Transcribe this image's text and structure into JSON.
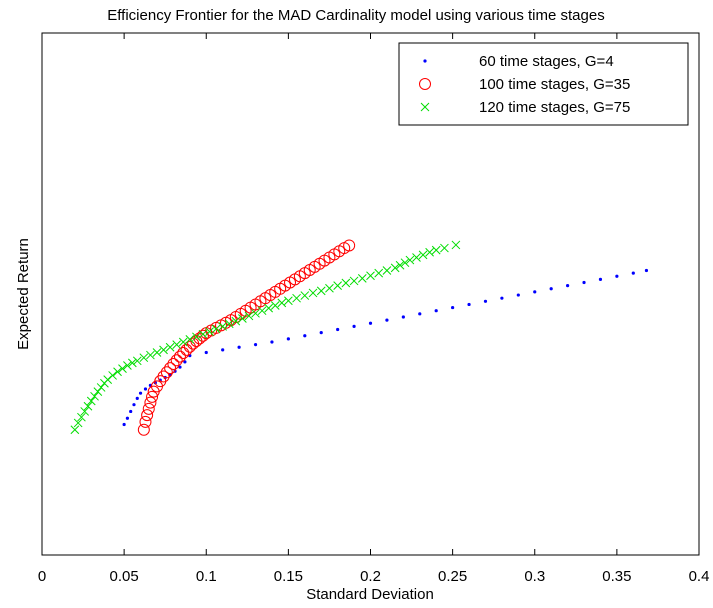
{
  "chart_data": {
    "type": "scatter",
    "title": "Efficiency Frontier for the MAD Cardinality model using various time stages",
    "xlabel": "Standard Deviation",
    "ylabel": "Expected Return",
    "xlim": [
      0,
      0.4
    ],
    "ylim": [
      0,
      1
    ],
    "xticks": [
      "0",
      "0.05",
      "0.1",
      "0.15",
      "0.2",
      "0.25",
      "0.3",
      "0.35",
      "0.4"
    ],
    "xtick_values": [
      0,
      0.05,
      0.1,
      0.15,
      0.2,
      0.25,
      0.3,
      0.35,
      0.4
    ],
    "yticks": [],
    "grid": false,
    "legend_position": "top-right",
    "series": [
      {
        "name": "60 time stages, G=4",
        "marker": "dot",
        "color": "#0000ff",
        "x": [
          0.05,
          0.052,
          0.054,
          0.056,
          0.058,
          0.06,
          0.063,
          0.066,
          0.069,
          0.072,
          0.075,
          0.078,
          0.081,
          0.084,
          0.087,
          0.09,
          0.1,
          0.11,
          0.12,
          0.13,
          0.14,
          0.15,
          0.16,
          0.17,
          0.18,
          0.19,
          0.2,
          0.21,
          0.22,
          0.23,
          0.24,
          0.25,
          0.26,
          0.27,
          0.28,
          0.29,
          0.3,
          0.31,
          0.32,
          0.33,
          0.34,
          0.35,
          0.36,
          0.368
        ],
        "y": [
          0.25,
          0.262,
          0.275,
          0.288,
          0.3,
          0.31,
          0.318,
          0.325,
          0.33,
          0.335,
          0.34,
          0.345,
          0.352,
          0.36,
          0.37,
          0.382,
          0.388,
          0.393,
          0.398,
          0.403,
          0.408,
          0.414,
          0.42,
          0.426,
          0.432,
          0.438,
          0.444,
          0.45,
          0.456,
          0.462,
          0.468,
          0.474,
          0.48,
          0.486,
          0.492,
          0.498,
          0.504,
          0.51,
          0.516,
          0.522,
          0.528,
          0.534,
          0.54,
          0.545
        ]
      },
      {
        "name": "100 time stages, G=35",
        "marker": "circle",
        "color": "#ff0000",
        "x": [
          0.062,
          0.063,
          0.064,
          0.065,
          0.066,
          0.067,
          0.068,
          0.07,
          0.072,
          0.074,
          0.076,
          0.078,
          0.08,
          0.082,
          0.084,
          0.086,
          0.088,
          0.09,
          0.092,
          0.094,
          0.096,
          0.098,
          0.1,
          0.103,
          0.106,
          0.109,
          0.112,
          0.115,
          0.118,
          0.121,
          0.124,
          0.127,
          0.13,
          0.133,
          0.136,
          0.139,
          0.142,
          0.145,
          0.148,
          0.151,
          0.154,
          0.157,
          0.16,
          0.163,
          0.166,
          0.169,
          0.172,
          0.175,
          0.178,
          0.181,
          0.184,
          0.187
        ],
        "y": [
          0.24,
          0.255,
          0.268,
          0.28,
          0.292,
          0.303,
          0.313,
          0.323,
          0.333,
          0.342,
          0.35,
          0.358,
          0.366,
          0.373,
          0.38,
          0.387,
          0.393,
          0.399,
          0.405,
          0.41,
          0.415,
          0.42,
          0.425,
          0.43,
          0.435,
          0.44,
          0.445,
          0.45,
          0.456,
          0.462,
          0.468,
          0.474,
          0.48,
          0.486,
          0.492,
          0.498,
          0.504,
          0.51,
          0.516,
          0.522,
          0.528,
          0.534,
          0.54,
          0.546,
          0.552,
          0.558,
          0.564,
          0.57,
          0.576,
          0.582,
          0.588,
          0.593
        ]
      },
      {
        "name": "120 time stages, G=75",
        "marker": "x",
        "color": "#00dd00",
        "x": [
          0.02,
          0.022,
          0.024,
          0.026,
          0.028,
          0.03,
          0.032,
          0.034,
          0.036,
          0.038,
          0.04,
          0.043,
          0.046,
          0.049,
          0.052,
          0.055,
          0.058,
          0.062,
          0.066,
          0.07,
          0.074,
          0.078,
          0.082,
          0.086,
          0.09,
          0.094,
          0.098,
          0.102,
          0.106,
          0.11,
          0.114,
          0.118,
          0.122,
          0.126,
          0.13,
          0.134,
          0.138,
          0.142,
          0.146,
          0.15,
          0.155,
          0.16,
          0.165,
          0.17,
          0.175,
          0.18,
          0.185,
          0.19,
          0.195,
          0.2,
          0.205,
          0.21,
          0.215,
          0.218,
          0.221,
          0.224,
          0.228,
          0.232,
          0.236,
          0.24,
          0.245,
          0.252
        ],
        "y": [
          0.24,
          0.253,
          0.264,
          0.275,
          0.285,
          0.295,
          0.304,
          0.313,
          0.321,
          0.329,
          0.336,
          0.344,
          0.351,
          0.357,
          0.363,
          0.368,
          0.372,
          0.378,
          0.383,
          0.388,
          0.393,
          0.398,
          0.403,
          0.408,
          0.413,
          0.418,
          0.423,
          0.428,
          0.433,
          0.438,
          0.443,
          0.448,
          0.453,
          0.458,
          0.463,
          0.468,
          0.473,
          0.478,
          0.483,
          0.487,
          0.492,
          0.497,
          0.502,
          0.506,
          0.511,
          0.516,
          0.521,
          0.525,
          0.53,
          0.535,
          0.54,
          0.545,
          0.55,
          0.555,
          0.56,
          0.565,
          0.57,
          0.575,
          0.58,
          0.584,
          0.588,
          0.594
        ]
      }
    ]
  }
}
